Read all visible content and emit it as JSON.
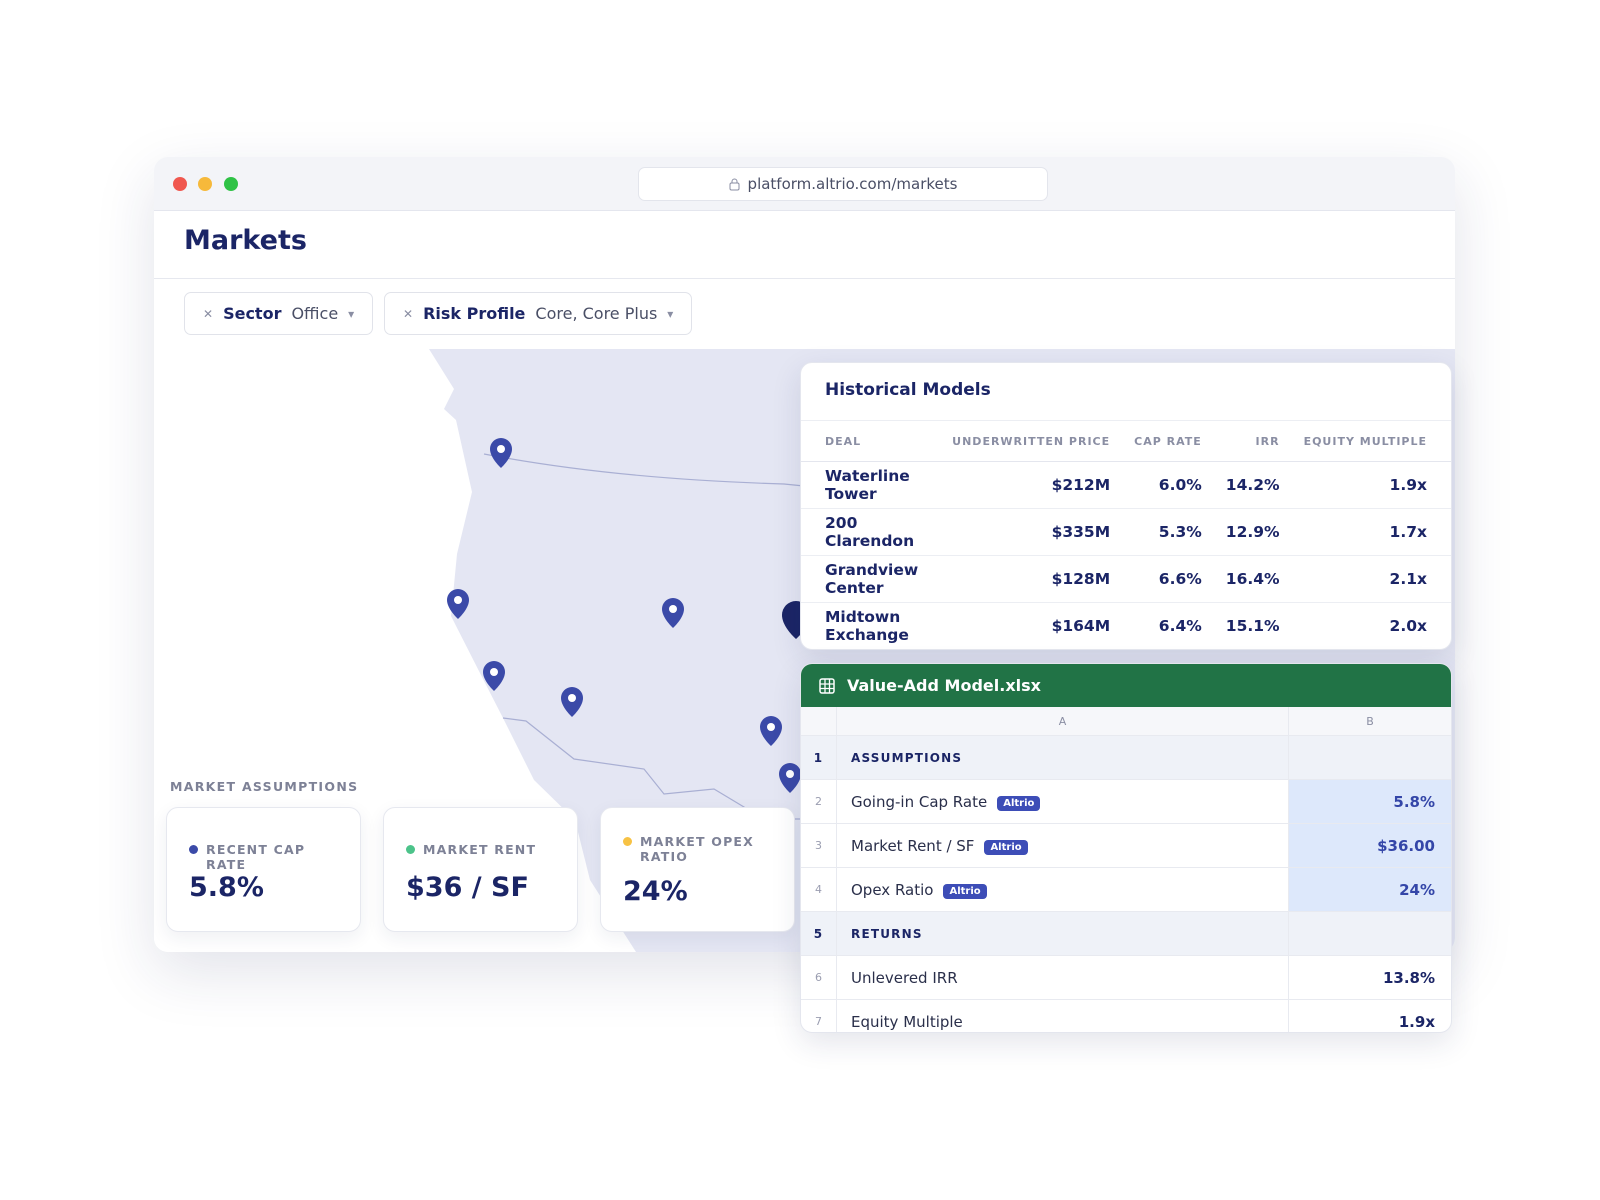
{
  "browser": {
    "url": "platform.altrio.com/markets"
  },
  "page": {
    "title": "Markets"
  },
  "filters": [
    {
      "label": "Sector",
      "value": "Office"
    },
    {
      "label": "Risk Profile",
      "value": "Core, Core Plus"
    }
  ],
  "market_assumptions": {
    "title": "MARKET ASSUMPTIONS",
    "cards": [
      {
        "label": "RECENT CAP RATE",
        "value": "5.8%",
        "color": "#3b4aa8"
      },
      {
        "label": "MARKET RENT",
        "value": "$36 / SF",
        "color": "#4cc38a"
      },
      {
        "label": "MARKET OPEX RATIO",
        "value": "24%",
        "color": "#f7c244"
      }
    ]
  },
  "historical_models": {
    "title": "Historical Models",
    "columns": [
      "DEAL",
      "UNDERWRITTEN PRICE",
      "CAP RATE",
      "IRR",
      "EQUITY MULTIPLE"
    ],
    "rows": [
      [
        "Waterline Tower",
        "$212M",
        "6.0%",
        "14.2%",
        "1.9x"
      ],
      [
        "200 Clarendon",
        "$335M",
        "5.3%",
        "12.9%",
        "1.7x"
      ],
      [
        "Grandview Center",
        "$128M",
        "6.6%",
        "16.4%",
        "2.1x"
      ],
      [
        "Midtown Exchange",
        "$164M",
        "6.4%",
        "15.1%",
        "2.0x"
      ]
    ]
  },
  "spreadsheet": {
    "filename": "Value-Add Model.xlsx",
    "columns": [
      "A",
      "B"
    ],
    "rows": [
      {
        "number": "1",
        "label": "ASSUMPTIONS",
        "section": true
      },
      {
        "number": "2",
        "label": "Going-in Cap Rate",
        "badge": "Altrio",
        "value": "5.8%"
      },
      {
        "number": "3",
        "label": "Market Rent / SF",
        "badge": "Altrio",
        "value": "$36.00"
      },
      {
        "number": "4",
        "label": "Opex Ratio",
        "badge": "Altrio",
        "value": "24%"
      },
      {
        "number": "5",
        "label": "RETURNS",
        "section": true
      },
      {
        "number": "6",
        "label": "Unlevered IRR",
        "value": "13.8%"
      },
      {
        "number": "7",
        "label": "Equity Multiple",
        "value": "1.9x"
      }
    ]
  }
}
